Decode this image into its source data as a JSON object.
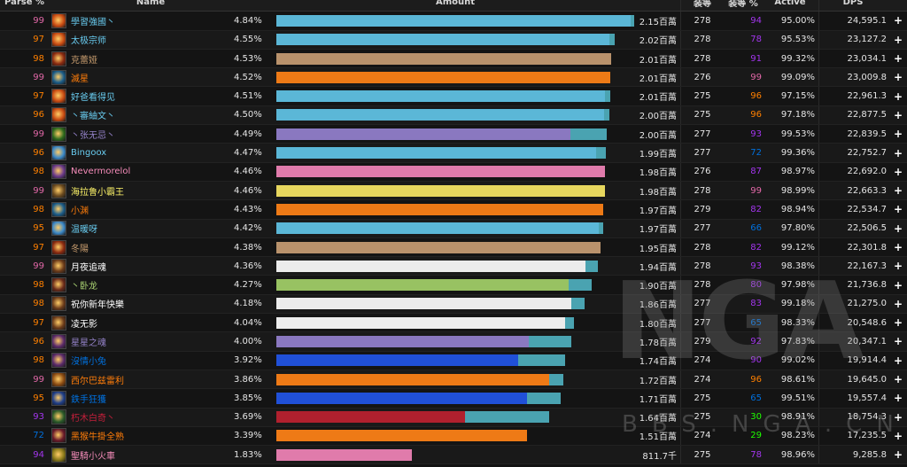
{
  "header": {
    "parse": "Parse %",
    "name": "Name",
    "amount": "Amount",
    "ilvl": "装等",
    "ilvl_parse": "装等 %",
    "active": "Active",
    "dps": "DPS"
  },
  "colors": {
    "mage": "#69ccf0",
    "warrior": "#c79c6e",
    "shaman": "#0070de",
    "priest": "#ffffff",
    "druid": "#ff7d0a",
    "warlock": "#9482c9",
    "monk": "#00ff96",
    "demon_hunter": "#a330c9",
    "rogue": "#fff569",
    "hunter": "#abd473",
    "paladin": "#f58cba",
    "death_knight": "#c41f3b",
    "parse_orange": "#ff8000",
    "parse_pink": "#e268a8",
    "parse_purple": "#a335ee",
    "parse_blue": "#0070dd",
    "parse_green": "#1eff00"
  },
  "plus_label": "+",
  "rows": [
    {
      "parse": "99",
      "parse_color": "#e268a8",
      "icon": "fire-mage-icon",
      "icon_color": "#c84a12",
      "name": "學習強國丶",
      "name_color": "#69ccf0",
      "pct": "4.84%",
      "bar_color": "#5bb7d7",
      "main": 0.99,
      "ext": 0.013,
      "amount": "2.15百萬",
      "ilvl": "278",
      "ipar": "94",
      "ipar_color": "#a335ee",
      "active": "95.00%",
      "dps": "24,595.1"
    },
    {
      "parse": "97",
      "parse_color": "#ff8000",
      "icon": "fire-mage-icon",
      "icon_color": "#c84a12",
      "name": "太极宗师",
      "name_color": "#69ccf0",
      "pct": "4.55%",
      "bar_color": "#5bb7d7",
      "main": 0.93,
      "ext": 0.014,
      "amount": "2.02百萬",
      "ilvl": "278",
      "ipar": "78",
      "ipar_color": "#a335ee",
      "active": "95.53%",
      "dps": "23,127.2"
    },
    {
      "parse": "98",
      "parse_color": "#ff8000",
      "icon": "warrior-icon",
      "icon_color": "#8b2a10",
      "name": "克蕾娅",
      "name_color": "#c79c6e",
      "pct": "4.53%",
      "bar_color": "#b9926c",
      "main": 0.935,
      "ext": 0.0,
      "amount": "2.01百萬",
      "ilvl": "278",
      "ipar": "91",
      "ipar_color": "#a335ee",
      "active": "99.32%",
      "dps": "23,034.1"
    },
    {
      "parse": "99",
      "parse_color": "#e268a8",
      "icon": "druid-icon",
      "icon_color": "#1b5d8a",
      "name": "滅星",
      "name_color": "#ff7d0a",
      "pct": "4.52%",
      "bar_color": "#ee7a16",
      "main": 0.933,
      "ext": 0.0,
      "amount": "2.01百萬",
      "ilvl": "276",
      "ipar": "99",
      "ipar_color": "#e268a8",
      "active": "99.09%",
      "dps": "23,009.8"
    },
    {
      "parse": "97",
      "parse_color": "#ff8000",
      "icon": "fire-mage-icon",
      "icon_color": "#c84a12",
      "name": "好爸看得见",
      "name_color": "#69ccf0",
      "pct": "4.51%",
      "bar_color": "#5bb7d7",
      "main": 0.918,
      "ext": 0.015,
      "amount": "2.01百萬",
      "ilvl": "275",
      "ipar": "96",
      "ipar_color": "#ff8000",
      "active": "97.15%",
      "dps": "22,961.3"
    },
    {
      "parse": "96",
      "parse_color": "#ff8000",
      "icon": "fire-mage-icon",
      "icon_color": "#c84a12",
      "name": "丶審紬文丶",
      "name_color": "#69ccf0",
      "pct": "4.50%",
      "bar_color": "#5bb7d7",
      "main": 0.916,
      "ext": 0.015,
      "amount": "2.00百萬",
      "ilvl": "275",
      "ipar": "96",
      "ipar_color": "#ff8000",
      "active": "97.18%",
      "dps": "22,877.5"
    },
    {
      "parse": "99",
      "parse_color": "#e268a8",
      "icon": "warlock-icon",
      "icon_color": "#2d6a1d",
      "name": "丶张无忌丶",
      "name_color": "#9482c9",
      "pct": "4.49%",
      "bar_color": "#8a78c0",
      "main": 0.822,
      "ext": 0.102,
      "amount": "2.00百萬",
      "ilvl": "277",
      "ipar": "93",
      "ipar_color": "#a335ee",
      "active": "99.53%",
      "dps": "22,839.5"
    },
    {
      "parse": "96",
      "parse_color": "#ff8000",
      "icon": "frost-mage-icon",
      "icon_color": "#3b88c7",
      "name": "Bingoox",
      "name_color": "#69ccf0",
      "pct": "4.47%",
      "bar_color": "#5bb7d7",
      "main": 0.893,
      "ext": 0.028,
      "amount": "1.99百萬",
      "ilvl": "277",
      "ipar": "72",
      "ipar_color": "#0070dd",
      "active": "99.36%",
      "dps": "22,752.7"
    },
    {
      "parse": "98",
      "parse_color": "#ff8000",
      "icon": "paladin-icon",
      "icon_color": "#6a3a8a",
      "name": "Nevermorelol",
      "name_color": "#f58cba",
      "pct": "4.46%",
      "bar_color": "#e07bab",
      "main": 0.918,
      "ext": 0.0,
      "amount": "1.98百萬",
      "ilvl": "276",
      "ipar": "87",
      "ipar_color": "#a335ee",
      "active": "98.97%",
      "dps": "22,692.0"
    },
    {
      "parse": "99",
      "parse_color": "#e268a8",
      "icon": "rogue-icon",
      "icon_color": "#6b4a1f",
      "name": "海拉鲁小霸王",
      "name_color": "#fff569",
      "pct": "4.46%",
      "bar_color": "#e7d75e",
      "main": 0.918,
      "ext": 0.0,
      "amount": "1.98百萬",
      "ilvl": "278",
      "ipar": "99",
      "ipar_color": "#e268a8",
      "active": "98.99%",
      "dps": "22,663.3"
    },
    {
      "parse": "98",
      "parse_color": "#ff8000",
      "icon": "druid-icon",
      "icon_color": "#1b5d8a",
      "name": "小渊",
      "name_color": "#ff7d0a",
      "pct": "4.43%",
      "bar_color": "#ee7a16",
      "main": 0.913,
      "ext": 0.0,
      "amount": "1.97百萬",
      "ilvl": "279",
      "ipar": "82",
      "ipar_color": "#a335ee",
      "active": "98.94%",
      "dps": "22,534.7"
    },
    {
      "parse": "95",
      "parse_color": "#ff8000",
      "icon": "frost-mage-icon",
      "icon_color": "#3b88c7",
      "name": "温暖呀",
      "name_color": "#69ccf0",
      "pct": "4.42%",
      "bar_color": "#5bb7d7",
      "main": 0.9,
      "ext": 0.013,
      "amount": "1.97百萬",
      "ilvl": "277",
      "ipar": "66",
      "ipar_color": "#0070dd",
      "active": "97.80%",
      "dps": "22,506.5"
    },
    {
      "parse": "97",
      "parse_color": "#ff8000",
      "icon": "warrior-icon",
      "icon_color": "#8b2a10",
      "name": "冬陽",
      "name_color": "#c79c6e",
      "pct": "4.38%",
      "bar_color": "#b9926c",
      "main": 0.905,
      "ext": 0.0,
      "amount": "1.95百萬",
      "ilvl": "278",
      "ipar": "82",
      "ipar_color": "#a335ee",
      "active": "99.12%",
      "dps": "22,301.8"
    },
    {
      "parse": "99",
      "parse_color": "#e268a8",
      "icon": "priest-icon",
      "icon_color": "#6a3a1a",
      "name": "月夜追魂",
      "name_color": "#ffffff",
      "pct": "4.36%",
      "bar_color": "#ececec",
      "main": 0.864,
      "ext": 0.035,
      "amount": "1.94百萬",
      "ilvl": "278",
      "ipar": "93",
      "ipar_color": "#a335ee",
      "active": "98.38%",
      "dps": "22,167.3"
    },
    {
      "parse": "98",
      "parse_color": "#ff8000",
      "icon": "hunter-icon",
      "icon_color": "#6a2a1a",
      "name": "丶卧龙",
      "name_color": "#abd473",
      "pct": "4.27%",
      "bar_color": "#98c262",
      "main": 0.817,
      "ext": 0.065,
      "amount": "1.90百萬",
      "ilvl": "278",
      "ipar": "80",
      "ipar_color": "#a335ee",
      "active": "97.98%",
      "dps": "21,736.8"
    },
    {
      "parse": "98",
      "parse_color": "#ff8000",
      "icon": "priest-icon",
      "icon_color": "#6a3a1a",
      "name": "祝你新年快樂",
      "name_color": "#ffffff",
      "pct": "4.18%",
      "bar_color": "#ececec",
      "main": 0.824,
      "ext": 0.037,
      "amount": "1.86百萬",
      "ilvl": "277",
      "ipar": "83",
      "ipar_color": "#a335ee",
      "active": "99.18%",
      "dps": "21,275.0"
    },
    {
      "parse": "97",
      "parse_color": "#ff8000",
      "icon": "priest-icon",
      "icon_color": "#6a3a1a",
      "name": "凌无影",
      "name_color": "#ffffff",
      "pct": "4.04%",
      "bar_color": "#ececec",
      "main": 0.807,
      "ext": 0.025,
      "amount": "1.80百萬",
      "ilvl": "277",
      "ipar": "65",
      "ipar_color": "#0070dd",
      "active": "98.33%",
      "dps": "20,548.6"
    },
    {
      "parse": "96",
      "parse_color": "#ff8000",
      "icon": "warlock-icon",
      "icon_color": "#5a2a6a",
      "name": "星星之魂",
      "name_color": "#9482c9",
      "pct": "4.00%",
      "bar_color": "#8a78c0",
      "main": 0.705,
      "ext": 0.12,
      "amount": "1.78百萬",
      "ilvl": "279",
      "ipar": "92",
      "ipar_color": "#a335ee",
      "active": "97.83%",
      "dps": "20,347.1"
    },
    {
      "parse": "98",
      "parse_color": "#ff8000",
      "icon": "shaman-icon",
      "icon_color": "#5a2a6a",
      "name": "沒情小兔",
      "name_color": "#0070de",
      "pct": "3.92%",
      "bar_color": "#2050d8",
      "main": 0.675,
      "ext": 0.132,
      "amount": "1.74百萬",
      "ilvl": "274",
      "ipar": "90",
      "ipar_color": "#a335ee",
      "active": "99.02%",
      "dps": "19,914.4"
    },
    {
      "parse": "99",
      "parse_color": "#e268a8",
      "icon": "druid-icon",
      "icon_color": "#8a4a12",
      "name": "西尔巴兹雷利",
      "name_color": "#ff7d0a",
      "pct": "3.86%",
      "bar_color": "#ee7a16",
      "main": 0.762,
      "ext": 0.04,
      "amount": "1.72百萬",
      "ilvl": "274",
      "ipar": "96",
      "ipar_color": "#ff8000",
      "active": "98.61%",
      "dps": "19,645.0"
    },
    {
      "parse": "95",
      "parse_color": "#ff8000",
      "icon": "shaman-icon",
      "icon_color": "#1e3e8a",
      "name": "鉄手狂獲",
      "name_color": "#0070de",
      "pct": "3.85%",
      "bar_color": "#2050d8",
      "main": 0.7,
      "ext": 0.095,
      "amount": "1.71百萬",
      "ilvl": "275",
      "ipar": "65",
      "ipar_color": "#0070dd",
      "active": "99.51%",
      "dps": "19,557.4"
    },
    {
      "parse": "93",
      "parse_color": "#a335ee",
      "icon": "death-knight-icon",
      "icon_color": "#2a5a2a",
      "name": "朽木白奇丶",
      "name_color": "#c41f3b",
      "pct": "3.69%",
      "bar_color": "#b0202e",
      "main": 0.527,
      "ext": 0.235,
      "amount": "1.64百萬",
      "ilvl": "275",
      "ipar": "30",
      "ipar_color": "#1eff00",
      "active": "98.91%",
      "dps": "18,754.3"
    },
    {
      "parse": "72",
      "parse_color": "#0070dd",
      "icon": "druid-icon",
      "icon_color": "#6a1a2a",
      "name": "黑猴牛掛全熟",
      "name_color": "#ff7d0a",
      "pct": "3.39%",
      "bar_color": "#ee7a16",
      "main": 0.7,
      "ext": 0.0,
      "amount": "1.51百萬",
      "ilvl": "274",
      "ipar": "29",
      "ipar_color": "#1eff00",
      "active": "98.23%",
      "dps": "17,235.5"
    },
    {
      "parse": "94",
      "parse_color": "#a335ee",
      "icon": "paladin-icon",
      "icon_color": "#8a7a1a",
      "name": "聖騎小火車",
      "name_color": "#f58cba",
      "pct": "1.83%",
      "bar_color": "#e07bab",
      "main": 0.378,
      "ext": 0.0,
      "amount": "811.7千",
      "ilvl": "275",
      "ipar": "78",
      "ipar_color": "#a335ee",
      "active": "98.96%",
      "dps": "9,285.8"
    }
  ]
}
